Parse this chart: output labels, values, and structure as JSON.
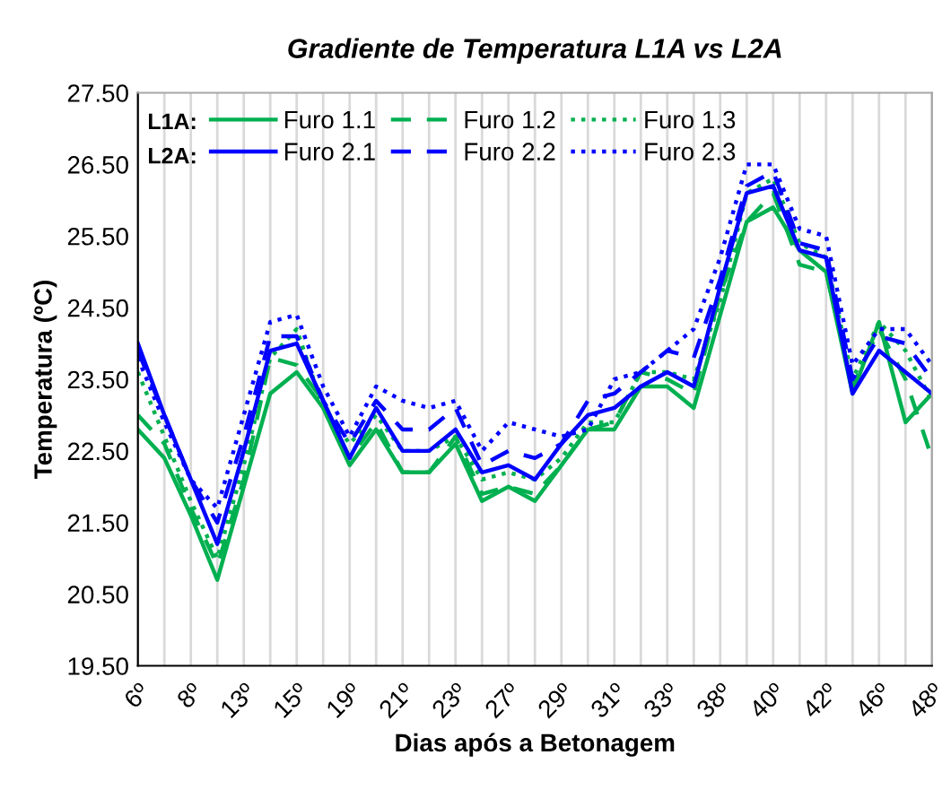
{
  "chart_data": {
    "type": "line",
    "title": "Gradiente de Temperatura L1A vs L2A",
    "xlabel": "Dias após a Betonagem",
    "ylabel": "Temperatura (ºC)",
    "categories": [
      "6º",
      null,
      "8º",
      null,
      "13º",
      null,
      "15º",
      null,
      "19º",
      null,
      "21º",
      null,
      "23º",
      null,
      "27º",
      null,
      "29º",
      null,
      "31º",
      null,
      "33º",
      null,
      "38º",
      null,
      "40º",
      null,
      "42º",
      null,
      "46º",
      null,
      "48º"
    ],
    "series": [
      {
        "name": "Furo 1.1",
        "color": "#00b050",
        "line_style": "solid",
        "values": [
          22.8,
          22.4,
          21.6,
          20.7,
          22.0,
          23.3,
          23.6,
          23.1,
          22.3,
          22.8,
          22.2,
          22.2,
          22.6,
          21.8,
          22.0,
          21.8,
          22.3,
          22.8,
          22.8,
          23.4,
          23.4,
          23.1,
          24.4,
          25.7,
          25.9,
          25.3,
          25.0,
          23.3,
          24.3,
          22.9,
          23.3
        ]
      },
      {
        "name": "Furo 1.2",
        "color": "#00b050",
        "line_style": "dashed",
        "values": [
          23.0,
          22.6,
          21.7,
          20.9,
          22.1,
          23.8,
          23.7,
          23.2,
          22.4,
          22.9,
          22.2,
          22.2,
          22.7,
          21.9,
          22.0,
          21.9,
          22.3,
          22.8,
          22.9,
          23.6,
          23.5,
          23.3,
          24.7,
          25.7,
          26.1,
          25.1,
          25.0,
          23.4,
          24.2,
          23.5,
          22.4
        ]
      },
      {
        "name": "Furo 1.3",
        "color": "#00b050",
        "line_style": "dotted",
        "values": [
          23.6,
          22.7,
          21.8,
          21.0,
          22.3,
          23.8,
          24.2,
          23.1,
          22.6,
          23.0,
          22.5,
          22.5,
          22.7,
          22.1,
          22.2,
          22.1,
          22.4,
          22.9,
          22.9,
          23.6,
          23.6,
          23.5,
          24.6,
          26.1,
          26.3,
          25.4,
          25.2,
          23.5,
          24.3,
          23.9,
          23.2
        ]
      },
      {
        "name": "Furo 2.1",
        "color": "#0000ff",
        "line_style": "solid",
        "values": [
          24.0,
          23.0,
          22.1,
          21.2,
          22.5,
          23.9,
          24.0,
          23.2,
          22.4,
          23.1,
          22.5,
          22.5,
          22.8,
          22.2,
          22.3,
          22.1,
          22.6,
          23.0,
          23.1,
          23.4,
          23.6,
          23.4,
          24.8,
          26.1,
          26.2,
          25.3,
          25.2,
          23.3,
          23.9,
          23.6,
          23.3
        ]
      },
      {
        "name": "Furo 2.2",
        "color": "#0000ff",
        "line_style": "dashed",
        "values": [
          23.9,
          23.0,
          22.1,
          21.5,
          22.7,
          24.1,
          24.1,
          23.2,
          22.6,
          23.2,
          22.8,
          22.8,
          23.1,
          22.3,
          22.5,
          22.4,
          22.6,
          23.2,
          23.3,
          23.6,
          23.9,
          23.8,
          24.9,
          26.2,
          26.4,
          25.4,
          25.3,
          23.5,
          24.1,
          24.0,
          23.5
        ]
      },
      {
        "name": "Furo 2.3",
        "color": "#0000ff",
        "line_style": "dotted",
        "values": [
          23.8,
          22.9,
          22.1,
          21.7,
          23.0,
          24.3,
          24.4,
          23.4,
          22.7,
          23.4,
          23.2,
          23.1,
          23.2,
          22.5,
          22.9,
          22.8,
          22.7,
          22.8,
          23.5,
          23.6,
          23.9,
          24.2,
          25.2,
          26.5,
          26.5,
          25.6,
          25.5,
          23.7,
          24.2,
          24.2,
          23.7
        ]
      }
    ],
    "ylim": [
      19.5,
      27.5
    ],
    "yticks": [
      {
        "value": 19.5,
        "label": "19.50"
      },
      {
        "value": 20.5,
        "label": "20.50"
      },
      {
        "value": 21.5,
        "label": "21.50"
      },
      {
        "value": 22.5,
        "label": "22.50"
      },
      {
        "value": 23.5,
        "label": "23.50"
      },
      {
        "value": 24.5,
        "label": "24.50"
      },
      {
        "value": 25.5,
        "label": "25.50"
      },
      {
        "value": 26.5,
        "label": "26.50"
      },
      {
        "value": 27.5,
        "label": "27.50"
      }
    ],
    "grid": "x",
    "legend": "top left",
    "marker": "none",
    "annotations": [
      "L1A:",
      "L2A:"
    ]
  }
}
